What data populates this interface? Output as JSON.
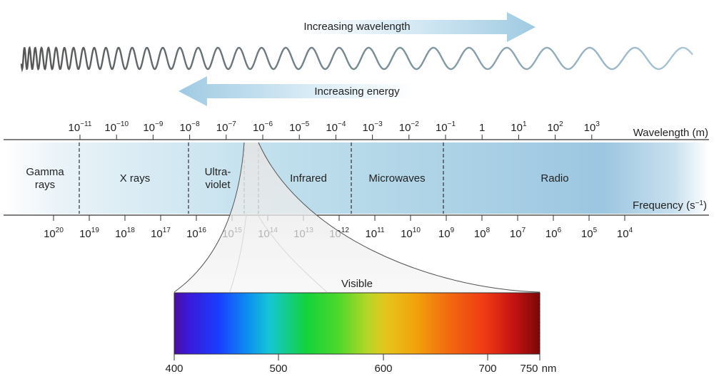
{
  "arrows": {
    "wavelength_label": "Increasing wavelength",
    "energy_label": "Increasing energy"
  },
  "wavelength": {
    "axis_label": "Wavelength (m)",
    "ticks": [
      {
        "base": "10",
        "exp": "−11"
      },
      {
        "base": "10",
        "exp": "−10"
      },
      {
        "base": "10",
        "exp": "−9"
      },
      {
        "base": "10",
        "exp": "−8"
      },
      {
        "base": "10",
        "exp": "−7"
      },
      {
        "base": "10",
        "exp": "−6"
      },
      {
        "base": "10",
        "exp": "−5"
      },
      {
        "base": "10",
        "exp": "−4"
      },
      {
        "base": "10",
        "exp": "−3"
      },
      {
        "base": "10",
        "exp": "−2"
      },
      {
        "base": "10",
        "exp": "−1"
      },
      {
        "base": "1",
        "exp": ""
      },
      {
        "base": "10",
        "exp": "1"
      },
      {
        "base": "10",
        "exp": "2"
      },
      {
        "base": "10",
        "exp": "3"
      }
    ]
  },
  "frequency": {
    "axis_label_base": "Frequency (s",
    "axis_label_exp": "−1",
    "axis_label_end": ")",
    "ticks": [
      {
        "base": "10",
        "exp": "20"
      },
      {
        "base": "10",
        "exp": "19"
      },
      {
        "base": "10",
        "exp": "18"
      },
      {
        "base": "10",
        "exp": "17"
      },
      {
        "base": "10",
        "exp": "16"
      },
      {
        "base": "10",
        "exp": "15"
      },
      {
        "base": "10",
        "exp": "14"
      },
      {
        "base": "10",
        "exp": "13"
      },
      {
        "base": "10",
        "exp": "12"
      },
      {
        "base": "10",
        "exp": "11"
      },
      {
        "base": "10",
        "exp": "10"
      },
      {
        "base": "10",
        "exp": "9"
      },
      {
        "base": "10",
        "exp": "8"
      },
      {
        "base": "10",
        "exp": "7"
      },
      {
        "base": "10",
        "exp": "6"
      },
      {
        "base": "10",
        "exp": "5"
      },
      {
        "base": "10",
        "exp": "4"
      }
    ]
  },
  "regions": {
    "gamma_line1": "Gamma",
    "gamma_line2": "rays",
    "xrays": "X rays",
    "uv_line1": "Ultra-",
    "uv_line2": "violet",
    "infrared": "Infrared",
    "microwaves": "Microwaves",
    "radio": "Radio"
  },
  "visible": {
    "label": "Visible",
    "ticks": [
      "400",
      "500",
      "600",
      "700"
    ],
    "last_tick": "750",
    "unit": "nm"
  },
  "colors": {
    "band_light": "#e8f3f8",
    "band_mid": "#b9dbea",
    "band_dark": "#9ec8e2",
    "arrow": "#a7cfe4"
  }
}
